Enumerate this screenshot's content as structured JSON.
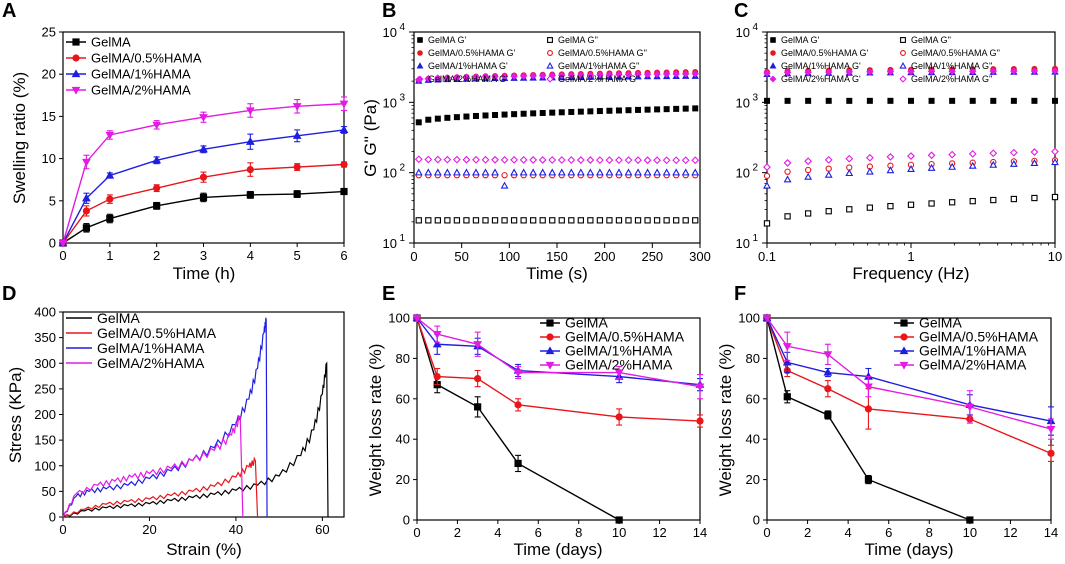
{
  "chart_data": [
    {
      "panel": "A",
      "type": "line",
      "xlabel": "Time (h)",
      "ylabel": "Swelling ratio (%)",
      "xlim": [
        0,
        6
      ],
      "ylim": [
        0,
        25
      ],
      "xticks": [
        "0",
        "1",
        "2",
        "3",
        "4",
        "5",
        "6"
      ],
      "yticks": [
        "0",
        "5",
        "10",
        "15",
        "20",
        "25"
      ],
      "x": [
        0,
        0.5,
        1,
        2,
        3,
        4,
        5,
        6
      ],
      "series": [
        {
          "name": "GelMA",
          "color": "#000000",
          "marker": "square",
          "values": [
            0,
            1.8,
            2.9,
            4.4,
            5.4,
            5.7,
            5.8,
            6.1
          ],
          "err": [
            0,
            0.5,
            0.5,
            0.4,
            0.5,
            0.4,
            0.4,
            0.3
          ]
        },
        {
          "name": "GelMA/0.5%HAMA",
          "color": "#e8161b",
          "marker": "circle",
          "values": [
            0,
            3.8,
            5.2,
            6.5,
            7.8,
            8.7,
            9.0,
            9.3
          ],
          "err": [
            0,
            0.6,
            0.5,
            0.4,
            0.6,
            0.8,
            0.4,
            0.3
          ]
        },
        {
          "name": "GelMA/1%HAMA",
          "color": "#1f1fe0",
          "marker": "triangle-up",
          "values": [
            0,
            5.3,
            8.0,
            9.8,
            11.1,
            12.0,
            12.7,
            13.4
          ],
          "err": [
            0,
            0.6,
            0.3,
            0.4,
            0.4,
            0.9,
            0.7,
            0.4
          ]
        },
        {
          "name": "GelMA/2%HAMA",
          "color": "#e31be3",
          "marker": "triangle-down",
          "values": [
            0,
            9.6,
            12.8,
            14.0,
            14.9,
            15.7,
            16.2,
            16.5
          ],
          "err": [
            0,
            0.8,
            0.5,
            0.5,
            0.6,
            0.8,
            0.8,
            0.8
          ]
        }
      ]
    },
    {
      "panel": "B",
      "type": "scatter",
      "xlabel": "Time (s)",
      "ylabel": "G' G'' (Pa)",
      "xlim": [
        0,
        300
      ],
      "ylim_log10": [
        1,
        4
      ],
      "xticks": [
        "0",
        "50",
        "100",
        "150",
        "200",
        "250",
        "300"
      ],
      "yticks": [
        {
          "base": "10",
          "exp": "1"
        },
        {
          "base": "10",
          "exp": "2"
        },
        {
          "base": "10",
          "exp": "3"
        },
        {
          "base": "10",
          "exp": "4"
        }
      ],
      "legend": [
        "GelMA G'",
        "GelMA G''",
        "GelMA/0.5%HAMA G'",
        "GelMA/0.5%HAMA G''",
        "GelMA/1%HAMA G'",
        "GelMA/1%HAMA G''",
        "GelMA/2%HAMA G'",
        "GelMA/2%HAMA G''"
      ],
      "series": [
        {
          "name": "GelMA G'",
          "color": "#000000",
          "marker": "square",
          "filled": true,
          "from": 520,
          "to": 820
        },
        {
          "name": "GelMA G''",
          "color": "#000000",
          "marker": "square",
          "filled": false,
          "from": 21,
          "to": 21
        },
        {
          "name": "GelMA/0.5%HAMA G'",
          "color": "#e8161b",
          "marker": "circle",
          "filled": true,
          "from": 2050,
          "to": 2700
        },
        {
          "name": "GelMA/0.5%HAMA G''",
          "color": "#e8161b",
          "marker": "circle",
          "filled": false,
          "from": 92,
          "to": 92
        },
        {
          "name": "GelMA/1%HAMA G'",
          "color": "#1f1fe0",
          "marker": "triangle-up",
          "filled": true,
          "from": 2000,
          "to": 2350
        },
        {
          "name": "GelMA/1%HAMA G''",
          "color": "#1f1fe0",
          "marker": "triangle-up",
          "filled": false,
          "from": 100,
          "to": 100
        },
        {
          "name": "GelMA/2%HAMA G'",
          "color": "#e31be3",
          "marker": "diamond",
          "filled": true,
          "from": 2100,
          "to": 2550
        },
        {
          "name": "GelMA/2%HAMA G''",
          "color": "#e31be3",
          "marker": "diamond",
          "filled": false,
          "from": 155,
          "to": 150
        }
      ]
    },
    {
      "panel": "C",
      "type": "scatter",
      "xlabel": "Frequency (Hz)",
      "ylabel": "",
      "xlim_log10": [
        -1,
        1
      ],
      "ylim_log10": [
        1,
        4
      ],
      "xticks": [
        "0.1",
        "1",
        "10"
      ],
      "yticks": [
        {
          "base": "10",
          "exp": "1"
        },
        {
          "base": "10",
          "exp": "2"
        },
        {
          "base": "10",
          "exp": "3"
        },
        {
          "base": "10",
          "exp": "4"
        }
      ],
      "legend": [
        "GelMA G'",
        "GelMA G''",
        "GelMA/0.5%HAMA G'",
        "GelMA/0.5%HAMA G''",
        "GelMA/1%HAMA G'",
        "GelMA/1%HAMA G''",
        "GelMA/2%HAMA G'",
        "GelMA/2%HAMA G''"
      ],
      "series": [
        {
          "name": "GelMA G'",
          "color": "#000000",
          "marker": "square",
          "filled": true,
          "from": 1050,
          "to": 1050
        },
        {
          "name": "GelMA G''",
          "color": "#000000",
          "marker": "square",
          "filled": false,
          "from": 19,
          "to": 45
        },
        {
          "name": "GelMA/0.5%HAMA G'",
          "color": "#e8161b",
          "marker": "circle",
          "filled": true,
          "from": 2700,
          "to": 3000
        },
        {
          "name": "GelMA/0.5%HAMA G''",
          "color": "#e8161b",
          "marker": "circle",
          "filled": false,
          "from": 90,
          "to": 150
        },
        {
          "name": "GelMA/1%HAMA G'",
          "color": "#1f1fe0",
          "marker": "triangle-up",
          "filled": true,
          "from": 2500,
          "to": 2700
        },
        {
          "name": "GelMA/1%HAMA G''",
          "color": "#1f1fe0",
          "marker": "triangle-up",
          "filled": false,
          "from": 65,
          "to": 140
        },
        {
          "name": "GelMA/2%HAMA G'",
          "color": "#e31be3",
          "marker": "diamond",
          "filled": true,
          "from": 2600,
          "to": 2800
        },
        {
          "name": "GelMA/2%HAMA G''",
          "color": "#e31be3",
          "marker": "diamond",
          "filled": false,
          "from": 120,
          "to": 200
        }
      ]
    },
    {
      "panel": "D",
      "type": "line",
      "xlabel": "Strain (%)",
      "ylabel": "Stress (KPa)",
      "xlim": [
        0,
        65
      ],
      "ylim": [
        0,
        400
      ],
      "xticks": [
        "0",
        "20",
        "40",
        "60"
      ],
      "yticks": [
        "0",
        "50",
        "100",
        "150",
        "200",
        "250",
        "300",
        "350",
        "400"
      ],
      "series": [
        {
          "name": "GelMA",
          "color": "#000000",
          "x": [
            0,
            5,
            10,
            15,
            20,
            25,
            30,
            35,
            40,
            45,
            50,
            55,
            58,
            60,
            61,
            61.3
          ],
          "values": [
            0,
            12,
            18,
            22,
            26,
            32,
            38,
            44,
            52,
            62,
            80,
            120,
            170,
            240,
            300,
            0
          ]
        },
        {
          "name": "GelMA/0.5%HAMA",
          "color": "#e8161b",
          "x": [
            0,
            5,
            10,
            15,
            20,
            25,
            30,
            35,
            40,
            43,
            44.5,
            45
          ],
          "values": [
            0,
            15,
            25,
            30,
            35,
            42,
            50,
            60,
            78,
            98,
            110,
            0
          ]
        },
        {
          "name": "GelMA/1%HAMA",
          "color": "#1f1fe0",
          "x": [
            0,
            3,
            6,
            10,
            15,
            20,
            25,
            30,
            35,
            40,
            43,
            45,
            46.5,
            47,
            47.2
          ],
          "values": [
            0,
            40,
            50,
            55,
            62,
            75,
            90,
            110,
            135,
            180,
            230,
            290,
            360,
            385,
            0
          ]
        },
        {
          "name": "GelMA/2%HAMA",
          "color": "#e31be3",
          "x": [
            0,
            3,
            8,
            12,
            16,
            20,
            25,
            30,
            35,
            39,
            41,
            41.6
          ],
          "values": [
            0,
            45,
            62,
            70,
            78,
            85,
            95,
            110,
            130,
            160,
            195,
            0
          ]
        }
      ]
    },
    {
      "panel": "E",
      "type": "line",
      "xlabel": "Time (days)",
      "ylabel": "Weight loss rate (%)",
      "xlim": [
        0,
        14
      ],
      "ylim": [
        0,
        100
      ],
      "xticks": [
        "0",
        "2",
        "4",
        "6",
        "8",
        "10",
        "12",
        "14"
      ],
      "yticks": [
        "0",
        "20",
        "40",
        "60",
        "80",
        "100"
      ],
      "series": [
        {
          "name": "GelMA",
          "color": "#000000",
          "marker": "square",
          "x": [
            0,
            1,
            3,
            5,
            10
          ],
          "values": [
            100,
            67,
            56,
            28,
            0
          ],
          "err": [
            0,
            4,
            5,
            4,
            0
          ]
        },
        {
          "name": "GelMA/0.5%HAMA",
          "color": "#e8161b",
          "marker": "circle",
          "x": [
            0,
            1,
            3,
            5,
            10,
            14
          ],
          "values": [
            100,
            71,
            70,
            57,
            51,
            49
          ],
          "err": [
            0,
            4,
            4,
            3,
            4,
            3
          ]
        },
        {
          "name": "GelMA/1%HAMA",
          "color": "#1f1fe0",
          "marker": "triangle-up",
          "x": [
            0,
            1,
            3,
            5,
            10,
            14
          ],
          "values": [
            100,
            87,
            86,
            74,
            71,
            67
          ],
          "err": [
            0,
            5,
            4,
            3,
            3,
            3
          ]
        },
        {
          "name": "GelMA/2%HAMA",
          "color": "#e31be3",
          "marker": "triangle-down",
          "x": [
            0,
            1,
            3,
            5,
            10,
            14
          ],
          "values": [
            100,
            92,
            87,
            73,
            73,
            66
          ],
          "err": [
            0,
            4,
            6,
            3,
            3,
            6
          ]
        }
      ]
    },
    {
      "panel": "F",
      "type": "line",
      "xlabel": "Time (days)",
      "ylabel": "Weight loss rate (%)",
      "xlim": [
        0,
        14
      ],
      "ylim": [
        0,
        100
      ],
      "xticks": [
        "0",
        "2",
        "4",
        "6",
        "8",
        "10",
        "12",
        "14"
      ],
      "yticks": [
        "0",
        "20",
        "40",
        "60",
        "80",
        "100"
      ],
      "series": [
        {
          "name": "GelMA",
          "color": "#000000",
          "marker": "square",
          "x": [
            0,
            1,
            3,
            5,
            10
          ],
          "values": [
            100,
            61,
            52,
            20,
            0
          ],
          "err": [
            0,
            3,
            2,
            2,
            0
          ]
        },
        {
          "name": "GelMA/0.5%HAMA",
          "color": "#e8161b",
          "marker": "circle",
          "x": [
            0,
            1,
            3,
            5,
            10,
            14
          ],
          "values": [
            100,
            74,
            65,
            55,
            50,
            33
          ],
          "err": [
            0,
            3,
            4,
            10,
            2,
            4
          ]
        },
        {
          "name": "GelMA/1%HAMA",
          "color": "#1f1fe0",
          "marker": "triangle-up",
          "x": [
            0,
            1,
            3,
            5,
            10,
            14
          ],
          "values": [
            100,
            78,
            73,
            71,
            57,
            49
          ],
          "err": [
            0,
            5,
            2,
            4,
            5,
            7
          ]
        },
        {
          "name": "GelMA/2%HAMA",
          "color": "#e31be3",
          "marker": "triangle-down",
          "x": [
            0,
            1,
            3,
            5,
            10,
            14
          ],
          "values": [
            100,
            86,
            82,
            66,
            56,
            45
          ],
          "err": [
            0,
            7,
            5,
            5,
            8,
            5
          ]
        }
      ]
    }
  ],
  "panel_labels": [
    "A",
    "B",
    "C",
    "D",
    "E",
    "F"
  ]
}
